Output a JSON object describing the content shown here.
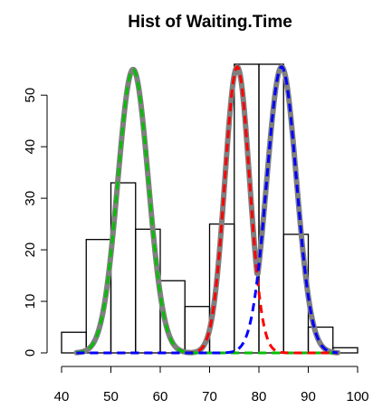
{
  "chart_data": {
    "type": "histogram",
    "title": "Hist of Waiting.Time",
    "xlabel": "",
    "ylabel": "",
    "xlim": [
      40,
      100
    ],
    "ylim": [
      0,
      56
    ],
    "x_ticks": [
      40,
      50,
      60,
      70,
      80,
      90,
      100
    ],
    "y_ticks": [
      0,
      10,
      20,
      30,
      40,
      50
    ],
    "bins": [
      {
        "start": 40,
        "end": 45,
        "count": 4
      },
      {
        "start": 45,
        "end": 50,
        "count": 22
      },
      {
        "start": 50,
        "end": 55,
        "count": 33
      },
      {
        "start": 55,
        "end": 60,
        "count": 24
      },
      {
        "start": 60,
        "end": 65,
        "count": 14
      },
      {
        "start": 65,
        "end": 70,
        "count": 9
      },
      {
        "start": 70,
        "end": 75,
        "count": 25
      },
      {
        "start": 75,
        "end": 80,
        "count": 56
      },
      {
        "start": 80,
        "end": 85,
        "count": 56
      },
      {
        "start": 85,
        "end": 90,
        "count": 23
      },
      {
        "start": 90,
        "end": 95,
        "count": 5
      },
      {
        "start": 95,
        "end": 100,
        "count": 1
      }
    ],
    "grid": false,
    "curves": [
      {
        "style": "dashed",
        "color": "#00c000",
        "mean": 54.5,
        "sd": 3.1,
        "peak": 55
      },
      {
        "style": "dashed",
        "color": "#ff0000",
        "mean": 75.6,
        "sd": 2.5,
        "peak": 55.5
      },
      {
        "style": "dashed",
        "color": "#0000ff",
        "mean": 84.6,
        "sd": 3.0,
        "peak": 55.5
      },
      {
        "style": "solid",
        "color": "#808080",
        "components": [
          0,
          1,
          2
        ]
      }
    ]
  }
}
